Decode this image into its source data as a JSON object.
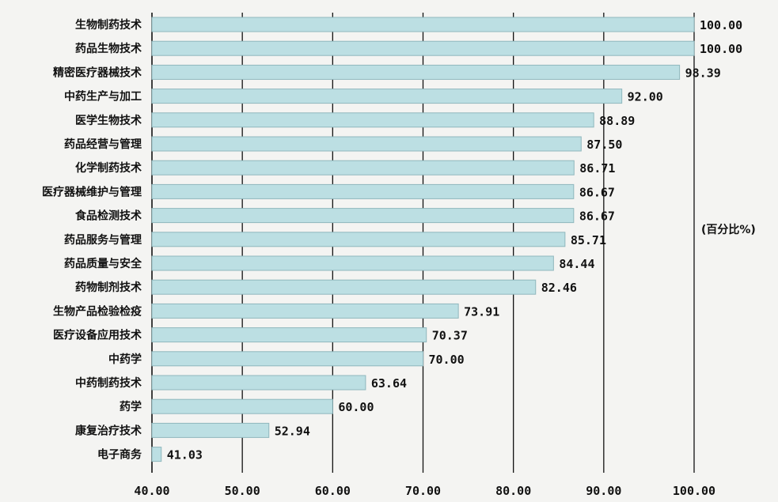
{
  "chart_data": {
    "type": "bar",
    "orientation": "horizontal",
    "unit_label": "(百分比%)",
    "xlim": [
      40,
      100
    ],
    "xticks": [
      "40.00",
      "50.00",
      "60.00",
      "70.00",
      "80.00",
      "90.00",
      "100.00"
    ],
    "grid": true,
    "categories": [
      "生物制药技术",
      "药品生物技术",
      "精密医疗器械技术",
      "中药生产与加工",
      "医学生物技术",
      "药品经营与管理",
      "化学制药技术",
      "医疗器械维护与管理",
      "食品检测技术",
      "药品服务与管理",
      "药品质量与安全",
      "药物制剂技术",
      "生物产品检验检疫",
      "医疗设备应用技术",
      "中药学",
      "中药制药技术",
      "药学",
      "康复治疗技术",
      "电子商务"
    ],
    "values": [
      100.0,
      100.0,
      98.39,
      92.0,
      88.89,
      87.5,
      86.71,
      86.67,
      86.67,
      85.71,
      84.44,
      82.46,
      73.91,
      70.37,
      70.0,
      63.64,
      60.0,
      52.94,
      41.03
    ],
    "value_labels": [
      "100.00",
      "100.00",
      "98.39",
      "92.00",
      "88.89",
      "87.50",
      "86.71",
      "86.67",
      "86.67",
      "85.71",
      "84.44",
      "82.46",
      "73.91",
      "70.37",
      "70.00",
      "63.64",
      "60.00",
      "52.94",
      "41.03"
    ],
    "colors": {
      "bar_fill": "#bcdfe3",
      "bar_stroke": "#8fb7bd",
      "grid": "#111111",
      "background": "#f4f4f2"
    }
  }
}
